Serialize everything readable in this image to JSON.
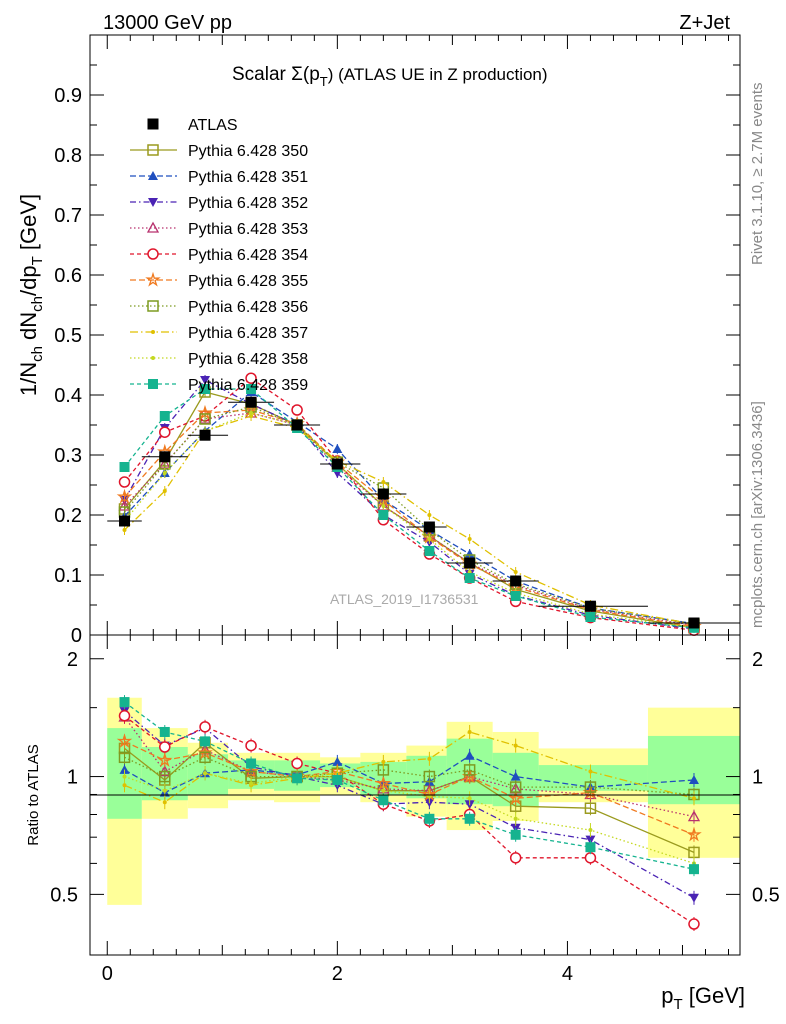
{
  "header": {
    "energy_label": "13000 GeV pp",
    "process_label": "Z+Jet",
    "title_main": "Scalar Σ(p",
    "title_sub_T": "T",
    "title_tail": ") (ATLAS UE in Z production)",
    "watermark": "ATLAS_2019_I1736531",
    "rivet_label": "Rivet 3.1.10, ≥ 2.7M events",
    "mcplots_label": "mcplots.cern.ch [arXiv:1306.3436]"
  },
  "axes": {
    "ylabel_upper": "1/N_ch dN_ch/dp_T [GeV]",
    "ylabel_lower": "Ratio to ATLAS",
    "xlabel": "p_T [GeV]"
  },
  "chart_data": {
    "type": "line",
    "title": "Scalar Σ(p_T) (ATLAS UE in Z production)",
    "xlabel": "p_T [GeV]",
    "ylabel": "1/N_ch dN_ch/dp_T [GeV]",
    "xlim": [
      -0.15,
      5.5
    ],
    "ylim": [
      0,
      1.0
    ],
    "ratio_ylim": [
      0.35,
      2.3
    ],
    "ratio_ylabel": "Ratio to ATLAS",
    "upper_yticks": [
      0,
      0.1,
      0.2,
      0.3,
      0.4,
      0.5,
      0.6,
      0.7,
      0.8,
      0.9
    ],
    "upper_ytick_labels": [
      "0",
      "0.1",
      "0.2",
      "0.3",
      "0.4",
      "0.5",
      "0.6",
      "0.7",
      "0.8",
      "0.9"
    ],
    "xticks": [
      0,
      2,
      4
    ],
    "xtick_labels": [
      "0",
      "2",
      "4"
    ],
    "ratio_yticks": [
      0.5,
      1,
      2
    ],
    "ratio_ytick_labels": [
      "0.5",
      "1",
      "2"
    ],
    "x": [
      0.15,
      0.5,
      0.85,
      1.25,
      1.65,
      2.0,
      2.4,
      2.8,
      3.15,
      3.55,
      4.2,
      5.1
    ],
    "bin_edges": [
      0,
      0.3,
      0.7,
      1.05,
      1.45,
      1.85,
      2.2,
      2.6,
      2.95,
      3.35,
      3.75,
      4.7,
      5.5
    ],
    "data": {
      "name": "ATLAS",
      "values": [
        0.19,
        0.297,
        0.333,
        0.388,
        0.35,
        0.285,
        0.235,
        0.18,
        0.12,
        0.09,
        0.048,
        0.02
      ],
      "band_yellow": [
        [
          0.47,
          1.59
        ],
        [
          0.78,
          1.33
        ],
        [
          0.83,
          1.22
        ],
        [
          0.87,
          1.15
        ],
        [
          0.86,
          1.15
        ],
        [
          0.9,
          1.12
        ],
        [
          0.86,
          1.15
        ],
        [
          0.79,
          1.2
        ],
        [
          0.73,
          1.38
        ],
        [
          0.77,
          1.3
        ],
        [
          0.86,
          1.18
        ],
        [
          0.62,
          1.5
        ]
      ],
      "band_green": [
        [
          0.78,
          1.33
        ],
        [
          0.87,
          1.19
        ],
        [
          0.9,
          1.14
        ],
        [
          0.93,
          1.1
        ],
        [
          0.92,
          1.1
        ],
        [
          0.94,
          1.08
        ],
        [
          0.9,
          1.09
        ],
        [
          0.88,
          1.13
        ],
        [
          0.85,
          1.25
        ],
        [
          0.84,
          1.15
        ],
        [
          0.92,
          1.07
        ],
        [
          0.85,
          1.27
        ]
      ]
    },
    "series": [
      {
        "name": "Pythia 6.428 350",
        "color": "#9a9a1e",
        "dash": "",
        "marker": "square-open",
        "values": [
          0.21,
          0.29,
          0.405,
          0.385,
          0.35,
          0.285,
          0.215,
          0.165,
          0.12,
          0.076,
          0.04,
          0.012
        ]
      },
      {
        "name": "Pythia 6.428 351",
        "color": "#1f4fbf",
        "dash": "6,3",
        "marker": "triangle-up",
        "values": [
          0.198,
          0.27,
          0.34,
          0.405,
          0.355,
          0.31,
          0.225,
          0.175,
          0.135,
          0.09,
          0.045,
          0.019
        ]
      },
      {
        "name": "Pythia 6.428 352",
        "color": "#4a23b4",
        "dash": "6,3,1.5,3",
        "marker": "triangle-down",
        "values": [
          0.225,
          0.345,
          0.425,
          0.385,
          0.35,
          0.27,
          0.2,
          0.155,
          0.102,
          0.066,
          0.033,
          0.01
        ]
      },
      {
        "name": "Pythia 6.428 353",
        "color": "#b8326e",
        "dash": "1.5,2.5",
        "marker": "triangle-open",
        "values": [
          0.215,
          0.285,
          0.36,
          0.37,
          0.35,
          0.28,
          0.215,
          0.165,
          0.12,
          0.083,
          0.043,
          0.016
        ]
      },
      {
        "name": "Pythia 6.428 354",
        "color": "#e0152b",
        "dash": "4,3",
        "marker": "circle-open",
        "values": [
          0.255,
          0.338,
          0.365,
          0.428,
          0.375,
          0.29,
          0.192,
          0.135,
          0.095,
          0.056,
          0.029,
          0.008
        ]
      },
      {
        "name": "Pythia 6.428 355",
        "color": "#f07a20",
        "dash": "6,3",
        "marker": "star-open",
        "values": [
          0.23,
          0.305,
          0.37,
          0.375,
          0.352,
          0.288,
          0.225,
          0.163,
          0.118,
          0.08,
          0.042,
          0.014
        ]
      },
      {
        "name": "Pythia 6.428 356",
        "color": "#7d9b20",
        "dash": "1.5,2.5",
        "marker": "square-open",
        "values": [
          0.205,
          0.285,
          0.36,
          0.38,
          0.35,
          0.288,
          0.245,
          0.175,
          0.125,
          0.085,
          0.045,
          0.018
        ]
      },
      {
        "name": "Pythia 6.428 357",
        "color": "#e0c000",
        "dash": "8,3,1.5,3",
        "marker": "dot",
        "values": [
          0.175,
          0.24,
          0.34,
          0.365,
          0.345,
          0.29,
          0.255,
          0.2,
          0.16,
          0.105,
          0.05,
          0.018
        ]
      },
      {
        "name": "Pythia 6.428 358",
        "color": "#c4d820",
        "dash": "1.5,2.5",
        "marker": "dot",
        "values": [
          0.19,
          0.27,
          0.34,
          0.37,
          0.35,
          0.285,
          0.215,
          0.16,
          0.105,
          0.07,
          0.035,
          0.012
        ]
      },
      {
        "name": "Pythia 6.428 359",
        "color": "#15b38f",
        "dash": "4,3",
        "marker": "square-fill",
        "values": [
          0.28,
          0.365,
          0.41,
          0.41,
          0.345,
          0.28,
          0.2,
          0.14,
          0.095,
          0.065,
          0.03,
          0.012
        ]
      }
    ],
    "ratios": [
      [
        1.18,
        0.98,
        1.22,
        0.99,
        1.0,
        1.0,
        0.92,
        0.92,
        1.0,
        0.84,
        0.83,
        0.64
      ],
      [
        1.04,
        0.91,
        1.02,
        1.04,
        1.01,
        1.09,
        0.96,
        0.97,
        1.13,
        1.0,
        0.94,
        0.98
      ],
      [
        1.47,
        1.2,
        1.33,
        1.06,
        1.0,
        0.95,
        0.85,
        0.86,
        0.85,
        0.74,
        0.69,
        0.49
      ],
      [
        1.42,
        1.03,
        1.17,
        1.03,
        1.0,
        0.98,
        0.93,
        0.92,
        1.0,
        0.93,
        0.9,
        0.79
      ],
      [
        1.43,
        1.19,
        1.34,
        1.2,
        1.08,
        1.02,
        0.85,
        0.77,
        0.8,
        0.62,
        0.62,
        0.42
      ],
      [
        1.23,
        1.1,
        1.15,
        1.03,
        1.0,
        1.03,
        0.96,
        0.9,
        1.0,
        0.88,
        0.91,
        0.71
      ],
      [
        1.12,
        1.0,
        1.12,
        1.0,
        1.0,
        1.02,
        1.04,
        1.0,
        1.04,
        0.94,
        0.94,
        0.9
      ],
      [
        0.95,
        0.86,
        1.02,
        0.95,
        0.99,
        1.02,
        1.09,
        1.11,
        1.3,
        1.2,
        1.03,
        0.88
      ],
      [
        1.0,
        0.92,
        1.02,
        0.96,
        1.0,
        1.0,
        0.92,
        0.89,
        0.88,
        0.78,
        0.73,
        0.6
      ],
      [
        1.55,
        1.3,
        1.23,
        1.08,
        0.99,
        0.98,
        0.87,
        0.78,
        0.78,
        0.71,
        0.66,
        0.58
      ]
    ],
    "legend_position": "top-left",
    "grid": false
  }
}
